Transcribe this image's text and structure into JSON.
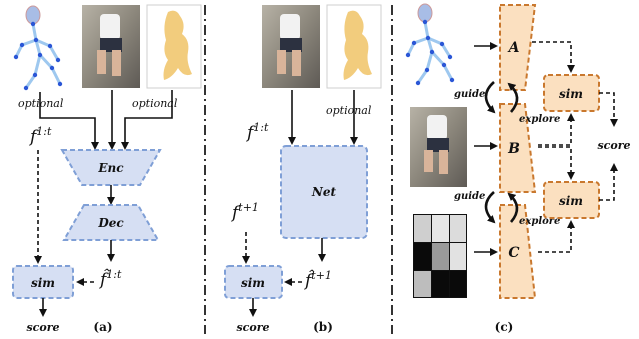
{
  "panel_a": {
    "optional_left": "optional",
    "optional_right": "optional",
    "f_label": "f",
    "f_sup": "1:t",
    "enc": "Enc",
    "dec": "Dec",
    "fhat_label": "f̂",
    "fhat_sup": "1:t",
    "sim": "sim",
    "score": "score",
    "caption": "(a)"
  },
  "panel_b": {
    "optional": "optional",
    "f_label": "f",
    "f_sup": "1:t",
    "f_next_label": "f",
    "f_next_sup": "t+1",
    "net": "Net",
    "fhat_label": "f̂",
    "fhat_sup": "t+1",
    "sim": "sim",
    "score": "score",
    "caption": "(b)"
  },
  "panel_c": {
    "node_a": "A",
    "node_b": "B",
    "node_c": "C",
    "guide_1": "guide",
    "explore_1": "explore",
    "guide_2": "guide",
    "explore_2": "explore",
    "sim_1": "sim",
    "sim_2": "sim",
    "score": "score",
    "caption": "(c)"
  },
  "colors": {
    "blue_fill": "#d6dff3",
    "blue_stroke": "#7f9fd6",
    "orange_fill": "#fbe0c0",
    "orange_stroke": "#c9782e"
  }
}
